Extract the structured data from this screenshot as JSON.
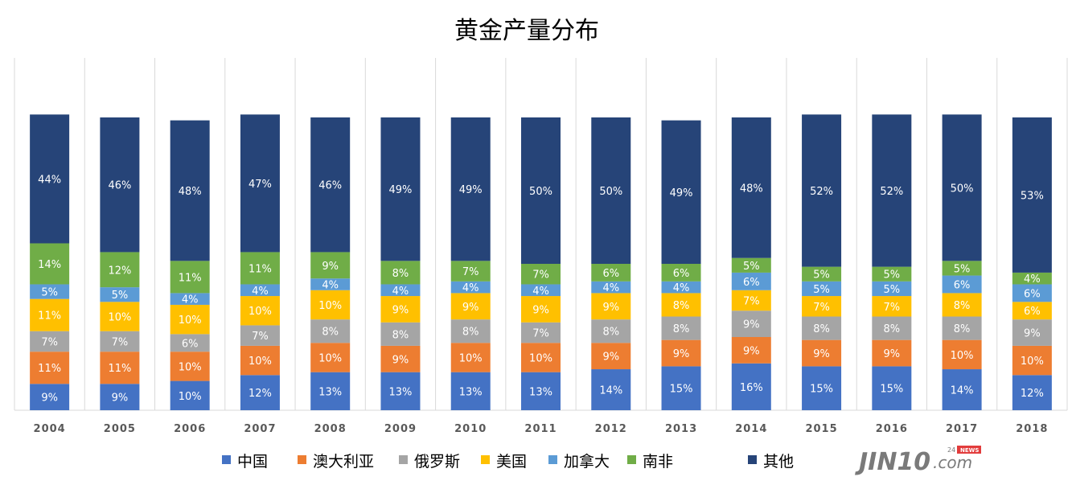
{
  "chart_data": {
    "type": "bar",
    "stacked": true,
    "title": "黄金产量分布",
    "categories": [
      "2004",
      "2005",
      "2006",
      "2007",
      "2008",
      "2009",
      "2010",
      "2011",
      "2012",
      "2013",
      "2014",
      "2015",
      "2016",
      "2017",
      "2018"
    ],
    "series": [
      {
        "name": "中国",
        "color": "#4472C4",
        "values": [
          9,
          9,
          10,
          12,
          13,
          13,
          13,
          13,
          14,
          15,
          16,
          15,
          15,
          14,
          12
        ]
      },
      {
        "name": "澳大利亚",
        "color": "#ED7D31",
        "values": [
          11,
          11,
          10,
          10,
          10,
          9,
          10,
          10,
          9,
          9,
          9,
          9,
          9,
          10,
          10
        ]
      },
      {
        "name": "俄罗斯",
        "color": "#A5A5A5",
        "values": [
          7,
          7,
          6,
          7,
          8,
          8,
          8,
          7,
          8,
          8,
          9,
          8,
          8,
          8,
          9
        ]
      },
      {
        "name": "美国",
        "color": "#FFC000",
        "values": [
          11,
          10,
          10,
          10,
          10,
          9,
          9,
          9,
          9,
          8,
          7,
          7,
          7,
          8,
          6
        ]
      },
      {
        "name": "加拿大",
        "color": "#5B9BD5",
        "values": [
          5,
          5,
          4,
          4,
          4,
          4,
          4,
          4,
          4,
          4,
          6,
          5,
          5,
          6,
          6
        ]
      },
      {
        "name": "南非",
        "color": "#70AD47",
        "values": [
          14,
          12,
          11,
          11,
          9,
          8,
          7,
          7,
          6,
          6,
          5,
          5,
          5,
          5,
          4
        ]
      },
      {
        "name": "其他",
        "color": "#264478",
        "values": [
          44,
          46,
          48,
          47,
          46,
          49,
          49,
          50,
          50,
          49,
          48,
          52,
          52,
          50,
          53
        ]
      }
    ],
    "value_format": "percent",
    "grid": "vertical-category-separators",
    "legend_position": "bottom"
  },
  "watermark": {
    "text": "JIN10",
    "suffix": ".com",
    "tag": "24",
    "badge": "NEWS"
  }
}
